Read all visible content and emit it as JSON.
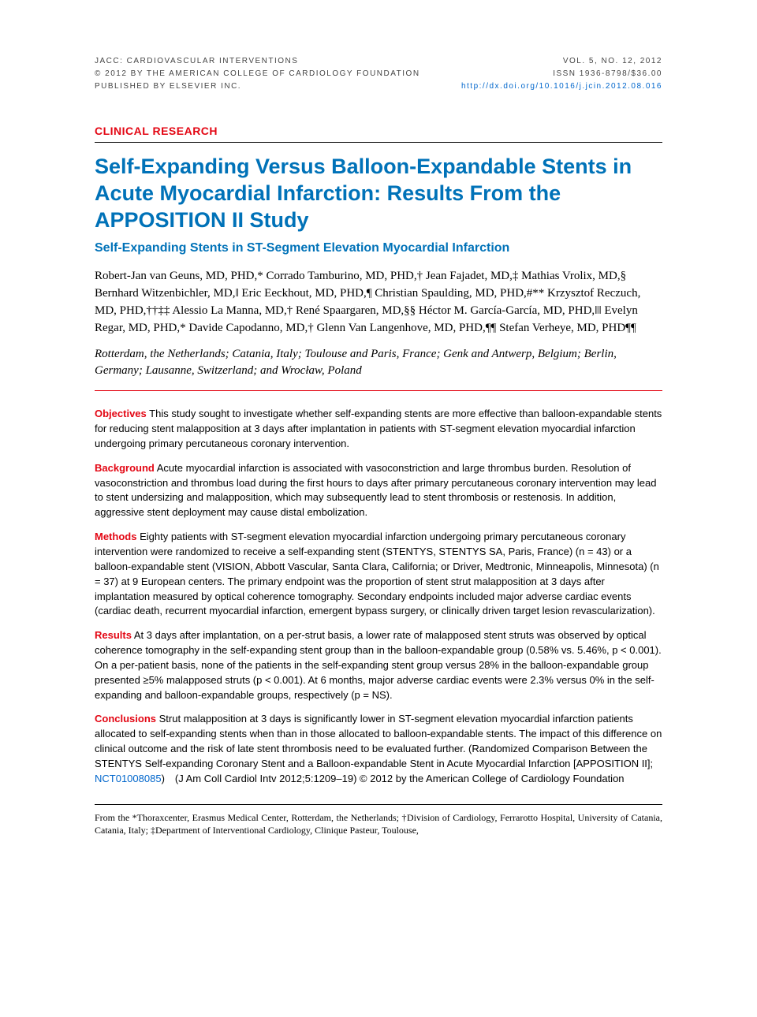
{
  "header": {
    "left_line1": "JACC: CARDIOVASCULAR INTERVENTIONS",
    "left_line2": "© 2012 BY THE AMERICAN COLLEGE OF CARDIOLOGY FOUNDATION",
    "left_line3": "PUBLISHED BY ELSEVIER INC.",
    "right_line1": "VOL. 5, NO. 12, 2012",
    "right_line2": "ISSN 1936-8798/$36.00",
    "right_link": "http://dx.doi.org/10.1016/j.jcin.2012.08.016"
  },
  "section_label": "CLINICAL RESEARCH",
  "title": "Self-Expanding Versus Balloon-Expandable Stents in Acute Myocardial Infarction: Results From the APPOSITION II Study",
  "subtitle": "Self-Expanding Stents in ST-Segment Elevation Myocardial Infarction",
  "authors": "Robert-Jan van Geuns, MD, PHD,* Corrado Tamburino, MD, PHD,† Jean Fajadet, MD,‡ Mathias Vrolix, MD,§ Bernhard Witzenbichler, MD,‖ Eric Eeckhout, MD, PHD,¶ Christian Spaulding, MD, PHD,#** Krzysztof Reczuch, MD, PHD,††‡‡ Alessio La Manna, MD,† René Spaargaren, MD,§§ Héctor M. García-García, MD, PHD,‖‖ Evelyn Regar, MD, PHD,* Davide Capodanno, MD,† Glenn Van Langenhove, MD, PHD,¶¶ Stefan Verheye, MD, PHD¶¶",
  "affiliations": "Rotterdam, the Netherlands; Catania, Italy; Toulouse and Paris, France; Genk and Antwerp, Belgium; Berlin, Germany; Lausanne, Switzerland; and Wrocław, Poland",
  "abstract": {
    "objectives": {
      "label": "Objectives",
      "text": "This study sought to investigate whether self-expanding stents are more effective than balloon-expandable stents for reducing stent malapposition at 3 days after implantation in patients with ST-segment elevation myocardial infarction undergoing primary percutaneous coronary intervention."
    },
    "background": {
      "label": "Background",
      "text": "Acute myocardial infarction is associated with vasoconstriction and large thrombus burden. Resolution of vasoconstriction and thrombus load during the first hours to days after primary percutaneous coronary intervention may lead to stent undersizing and malapposition, which may subsequently lead to stent thrombosis or restenosis. In addition, aggressive stent deployment may cause distal embolization."
    },
    "methods": {
      "label": "Methods",
      "text": "Eighty patients with ST-segment elevation myocardial infarction undergoing primary percutaneous coronary intervention were randomized to receive a self-expanding stent (STENTYS, STENTYS SA, Paris, France) (n = 43) or a balloon-expandable stent (VISION, Abbott Vascular, Santa Clara, California; or Driver, Medtronic, Minneapolis, Minnesota) (n = 37) at 9 European centers. The primary endpoint was the proportion of stent strut malapposition at 3 days after implantation measured by optical coherence tomography. Secondary endpoints included major adverse cardiac events (cardiac death, recurrent myocardial infarction, emergent bypass surgery, or clinically driven target lesion revascularization)."
    },
    "results": {
      "label": "Results",
      "text": "At 3 days after implantation, on a per-strut basis, a lower rate of malapposed stent struts was observed by optical coherence tomography in the self-expanding stent group than in the balloon-expandable group (0.58% vs. 5.46%, p < 0.001). On a per-patient basis, none of the patients in the self-expanding stent group versus 28% in the balloon-expandable group presented ≥5% malapposed struts (p < 0.001). At 6 months, major adverse cardiac events were 2.3% versus 0% in the self-expanding and balloon-expandable groups, respectively (p = NS)."
    },
    "conclusions": {
      "label": "Conclusions",
      "text_before_link": "Strut malapposition at 3 days is significantly lower in ST-segment elevation myocardial infarction patients allocated to self-expanding stents when than in those allocated to balloon-expandable stents. The impact of this difference on clinical outcome and the risk of late stent thrombosis need to be evaluated further. (Randomized Comparison Between the STENTYS Self-expanding Coronary Stent and a Balloon-expandable Stent in Acute Myocardial Infarction [APPOSITION II]; ",
      "link": "NCT01008085",
      "text_after_link": ") (J Am Coll Cardiol Intv 2012;5:1209–19) © 2012 by the American College of Cardiology Foundation"
    }
  },
  "footnote": "From the *Thoraxcenter, Erasmus Medical Center, Rotterdam, the Netherlands; †Division of Cardiology, Ferrarotto Hospital, University of Catania, Catania, Italy; ‡Department of Interventional Cardiology, Clinique Pasteur, Toulouse,",
  "colors": {
    "brand_red": "#e30613",
    "brand_blue": "#0072b8",
    "link_blue": "#0066cc",
    "text": "#000000",
    "background": "#ffffff"
  }
}
